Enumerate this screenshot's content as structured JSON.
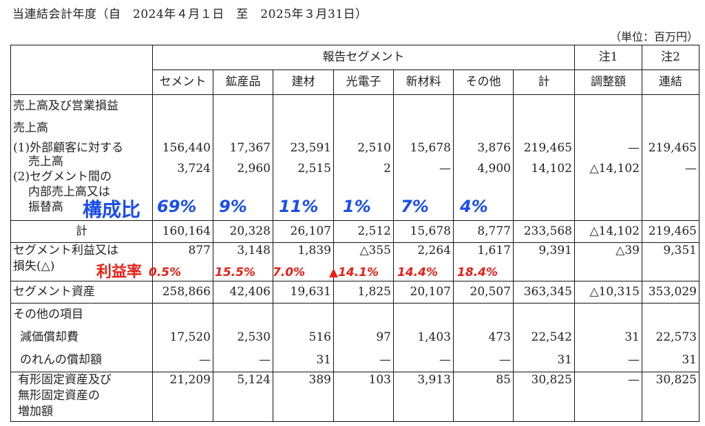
{
  "period": "当連結会計年度（自　2024年４月１日　至　2025年３月31日）",
  "unit": "（単位：百万円）",
  "header": {
    "segment_group": "報告セグメント",
    "note1": "注1",
    "note2": "注2",
    "cols": [
      "セメント",
      "鉱産品",
      "建材",
      "光電子",
      "新材料",
      "その他",
      "計",
      "調整額",
      "連結"
    ]
  },
  "rows": {
    "sales_title": "売上高及び営業損益",
    "sales_heading": "売上高",
    "external": {
      "label_1": "(1)外部顧客に対する",
      "label_2": "売上高",
      "values": [
        "156,440",
        "17,367",
        "23,591",
        "2,510",
        "15,678",
        "3,876",
        "219,465",
        "—",
        "219,465"
      ]
    },
    "intersegment": {
      "label_1": "(2)セグメント間の",
      "label_2": "内部売上高又は",
      "label_3": "振替高",
      "values": [
        "3,724",
        "2,960",
        "2,515",
        "2",
        "—",
        "4,900",
        "14,102",
        "△14,102",
        "—"
      ]
    },
    "total": {
      "label": "計",
      "values": [
        "160,164",
        "20,328",
        "26,107",
        "2,512",
        "15,678",
        "8,777",
        "233,568",
        "△14,102",
        "219,465"
      ]
    },
    "profit": {
      "label_1": "セグメント利益又は",
      "label_2": "損失(△)",
      "values": [
        "877",
        "3,148",
        "1,839",
        "△355",
        "2,264",
        "1,617",
        "9,391",
        "△39",
        "9,351"
      ]
    },
    "assets": {
      "label": "セグメント資産",
      "values": [
        "258,866",
        "42,406",
        "19,631",
        "1,825",
        "20,107",
        "20,507",
        "363,345",
        "△10,315",
        "353,029"
      ]
    },
    "other_heading": "その他の項目",
    "depreciation": {
      "label": "減価償却費",
      "values": [
        "17,520",
        "2,530",
        "516",
        "97",
        "1,403",
        "473",
        "22,542",
        "31",
        "22,573"
      ]
    },
    "goodwill": {
      "label": "のれんの償却額",
      "values": [
        "—",
        "—",
        "31",
        "—",
        "—",
        "—",
        "31",
        "—",
        "31"
      ]
    },
    "capex": {
      "label_1": "有形固定資産及び",
      "label_2": "無形固定資産の",
      "label_3": "増加額",
      "values": [
        "21,209",
        "5,124",
        "389",
        "103",
        "3,913",
        "85",
        "30,825",
        "—",
        "30,825"
      ]
    }
  },
  "annotations": {
    "composition_word": "構成比",
    "composition": [
      "69%",
      "9%",
      "11%",
      "1%",
      "7%",
      "4%"
    ],
    "margin_word": "利益率",
    "margins": [
      "0.5%",
      "15.5%",
      "7.0%",
      "▲14.1%",
      "14.4%",
      "18.4%"
    ],
    "blue": "#1a4cf0",
    "red": "#e81e14"
  }
}
